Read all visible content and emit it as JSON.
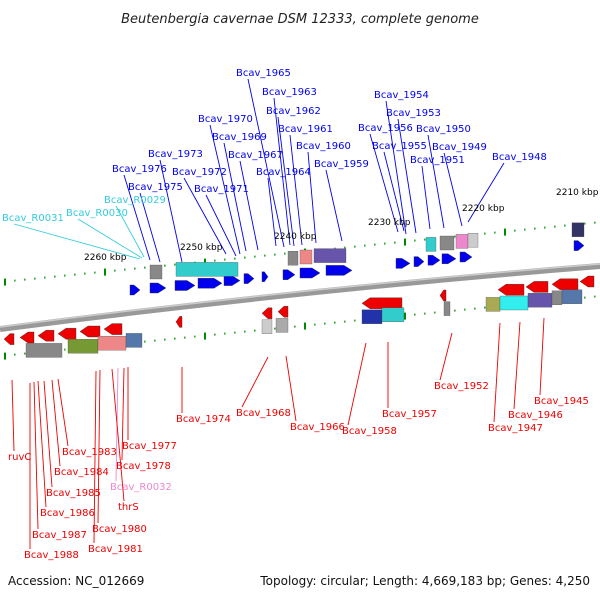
{
  "title": "Beutenbergia cavernae DSM 12333, complete genome",
  "footer": {
    "accession": "Accession: NC_012669",
    "topology": "Topology: circular; Length: 4,669,183 bp; Genes: 4,250"
  },
  "colors": {
    "forward_gene": "#0000ee",
    "reverse_gene": "#ee0000",
    "rna_gene": "#33ccdd",
    "pseudo_rna": "#ee88cc",
    "backbone": "#888888",
    "tick": "#008800"
  },
  "kbp_ticks": [
    "2260 kbp",
    "2250 kbp",
    "2240 kbp",
    "2230 kbp",
    "2220 kbp",
    "2210 kbp"
  ],
  "top_labels": [
    {
      "text": "Bcav_R0031",
      "kind": "rna"
    },
    {
      "text": "Bcav_R0030",
      "kind": "rna"
    },
    {
      "text": "Bcav_R0029",
      "kind": "rna"
    },
    {
      "text": "Bcav_1976",
      "kind": "forward"
    },
    {
      "text": "Bcav_1975",
      "kind": "forward"
    },
    {
      "text": "Bcav_1973",
      "kind": "forward"
    },
    {
      "text": "Bcav_1972",
      "kind": "forward"
    },
    {
      "text": "Bcav_1971",
      "kind": "forward"
    },
    {
      "text": "Bcav_1970",
      "kind": "forward"
    },
    {
      "text": "Bcav_1969",
      "kind": "forward"
    },
    {
      "text": "Bcav_1967",
      "kind": "forward"
    },
    {
      "text": "Bcav_1965",
      "kind": "forward"
    },
    {
      "text": "Bcav_1963",
      "kind": "forward"
    },
    {
      "text": "Bcav_1962",
      "kind": "forward"
    },
    {
      "text": "Bcav_1961",
      "kind": "forward"
    },
    {
      "text": "Bcav_1960",
      "kind": "forward"
    },
    {
      "text": "Bcav_1964",
      "kind": "forward"
    },
    {
      "text": "Bcav_1959",
      "kind": "forward"
    },
    {
      "text": "Bcav_1954",
      "kind": "forward"
    },
    {
      "text": "Bcav_1953",
      "kind": "forward"
    },
    {
      "text": "Bcav_1956",
      "kind": "forward"
    },
    {
      "text": "Bcav_1950",
      "kind": "forward"
    },
    {
      "text": "Bcav_1955",
      "kind": "forward"
    },
    {
      "text": "Bcav_1949",
      "kind": "forward"
    },
    {
      "text": "Bcav_1951",
      "kind": "forward"
    },
    {
      "text": "Bcav_1948",
      "kind": "forward"
    }
  ],
  "bottom_labels": [
    {
      "text": "Bcav_1974",
      "kind": "reverse"
    },
    {
      "text": "Bcav_1968",
      "kind": "reverse"
    },
    {
      "text": "Bcav_1966",
      "kind": "reverse"
    },
    {
      "text": "Bcav_1958",
      "kind": "reverse"
    },
    {
      "text": "Bcav_1957",
      "kind": "reverse"
    },
    {
      "text": "Bcav_1952",
      "kind": "reverse"
    },
    {
      "text": "Bcav_1945",
      "kind": "reverse"
    },
    {
      "text": "Bcav_1946",
      "kind": "reverse"
    },
    {
      "text": "Bcav_1947",
      "kind": "reverse"
    },
    {
      "text": "ruvC",
      "kind": "reverse"
    },
    {
      "text": "Bcav_1983",
      "kind": "reverse"
    },
    {
      "text": "Bcav_1984",
      "kind": "reverse"
    },
    {
      "text": "Bcav_1985",
      "kind": "reverse"
    },
    {
      "text": "Bcav_1986",
      "kind": "reverse"
    },
    {
      "text": "Bcav_1987",
      "kind": "reverse"
    },
    {
      "text": "Bcav_1988",
      "kind": "reverse"
    },
    {
      "text": "Bcav_1977",
      "kind": "reverse"
    },
    {
      "text": "Bcav_1978",
      "kind": "reverse"
    },
    {
      "text": "Bcav_R0032",
      "kind": "pseudo"
    },
    {
      "text": "thrS",
      "kind": "reverse"
    },
    {
      "text": "Bcav_1980",
      "kind": "reverse"
    },
    {
      "text": "Bcav_1981",
      "kind": "reverse"
    }
  ]
}
